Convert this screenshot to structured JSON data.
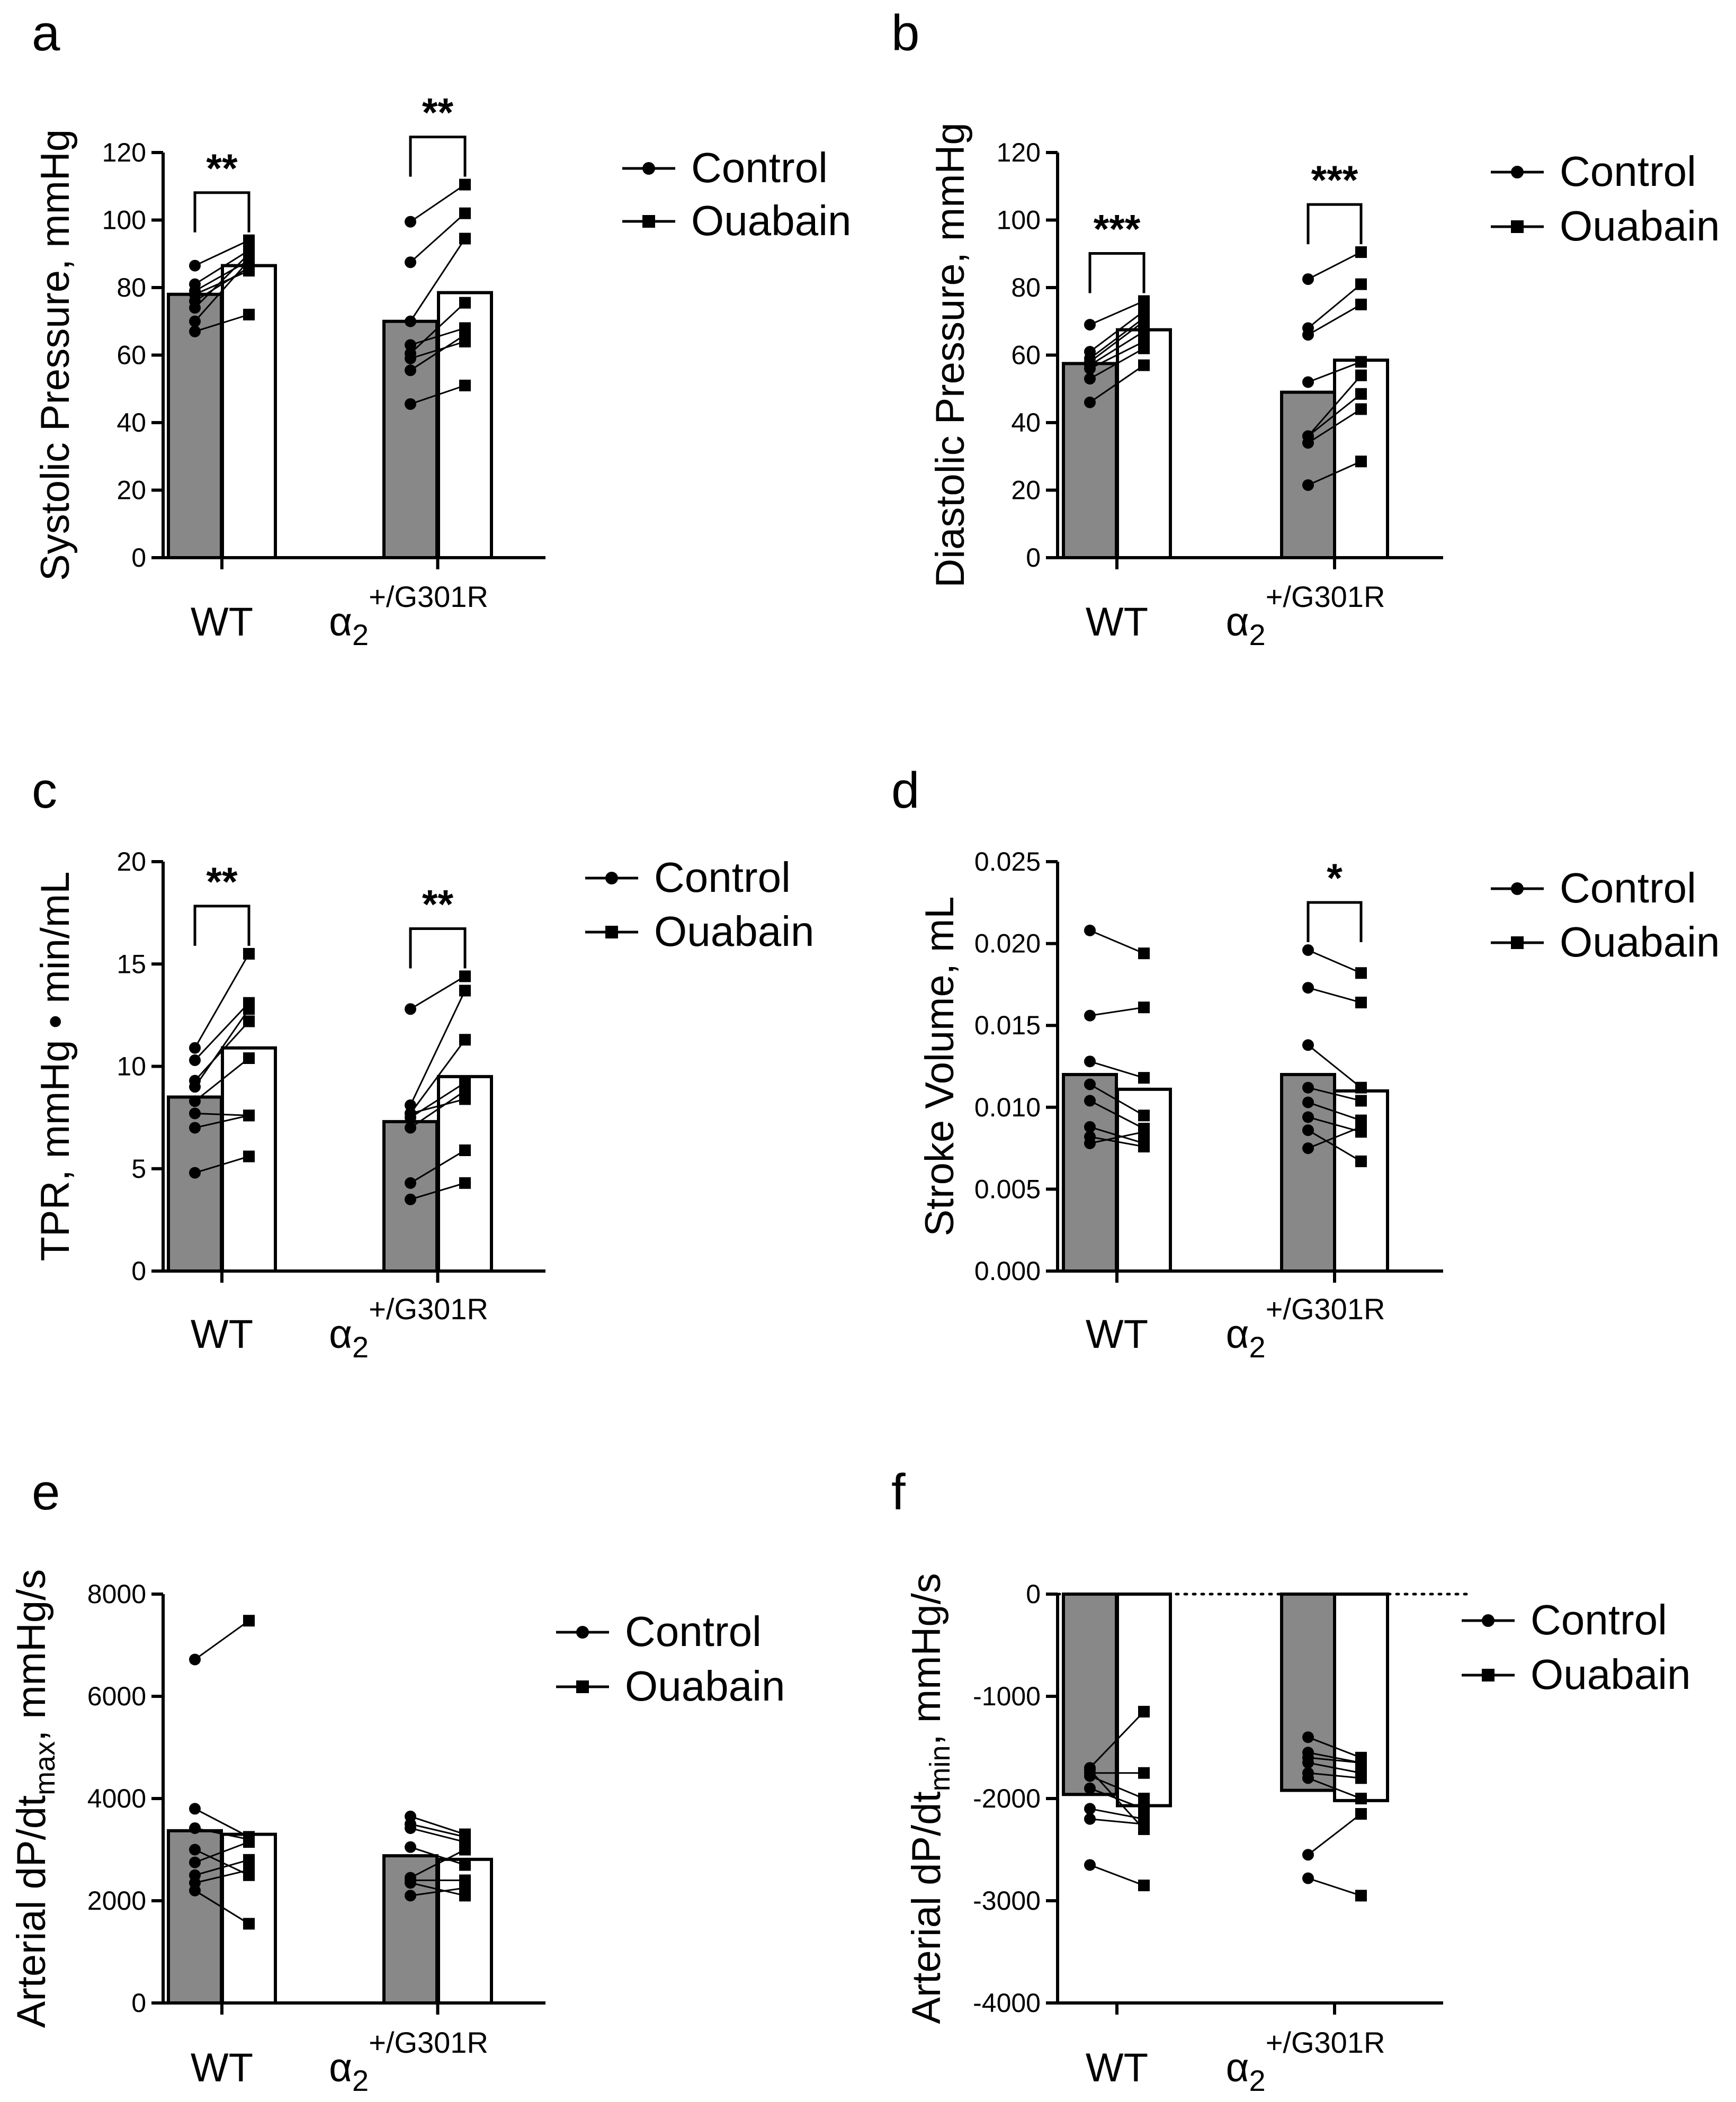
{
  "colors": {
    "control_bar": "#888888",
    "ouabain_bar": "#ffffff",
    "ink": "#000000"
  },
  "chart_data": [
    {
      "panel": "a",
      "type": "bar",
      "ylabel": "Systolic Pressure, mmHg",
      "ylim": [
        0,
        120
      ],
      "yticks": [
        "0",
        "20",
        "40",
        "60",
        "80",
        "100",
        "120"
      ],
      "ytick_values": [
        0,
        20,
        40,
        60,
        80,
        100,
        120
      ],
      "groups": [
        {
          "name": "WT",
          "superscript": "",
          "control_mean": 78,
          "ouabain_mean": 86.5,
          "pairs": [
            [
              86.5,
              94
            ],
            [
              81,
              91
            ],
            [
              79,
              88
            ],
            [
              78,
              85
            ],
            [
              76,
              86
            ],
            [
              74,
              90
            ],
            [
              70,
              88
            ],
            [
              67,
              72
            ]
          ],
          "sig": "**"
        },
        {
          "name": "α",
          "subscript": "2",
          "superscript": "+/G301R",
          "control_mean": 70,
          "ouabain_mean": 78.5,
          "pairs": [
            [
              99.5,
              110.5
            ],
            [
              87.5,
              102
            ],
            [
              70,
              94.5
            ],
            [
              60.5,
              75.5
            ],
            [
              55.5,
              66
            ],
            [
              45.5,
              51
            ],
            [
              59,
              64
            ],
            [
              63,
              68
            ]
          ],
          "sig": "**"
        }
      ],
      "legend": [
        "Control",
        "Ouabain"
      ]
    },
    {
      "panel": "b",
      "type": "bar",
      "ylabel": "Diastolic Pressure, mmHg",
      "ylim": [
        0,
        120
      ],
      "yticks": [
        "0",
        "20",
        "40",
        "60",
        "80",
        "100",
        "120"
      ],
      "ytick_values": [
        0,
        20,
        40,
        60,
        80,
        100,
        120
      ],
      "groups": [
        {
          "name": "WT",
          "superscript": "",
          "control_mean": 57.5,
          "ouabain_mean": 67.5,
          "pairs": [
            [
              69,
              76
            ],
            [
              61,
              73
            ],
            [
              58,
              70
            ],
            [
              57,
              67
            ],
            [
              56,
              64
            ],
            [
              53,
              62
            ],
            [
              46,
              57
            ],
            [
              59,
              71
            ]
          ],
          "sig": "***"
        },
        {
          "name": "α",
          "subscript": "2",
          "superscript": "+/G301R",
          "control_mean": 49,
          "ouabain_mean": 58.5,
          "pairs": [
            [
              82.5,
              90.5
            ],
            [
              68,
              81
            ],
            [
              66,
              75
            ],
            [
              52,
              58
            ],
            [
              36,
              48.5
            ],
            [
              34,
              44
            ],
            [
              21.5,
              28.5
            ],
            [
              36,
              54
            ]
          ],
          "sig": "***"
        }
      ],
      "legend": [
        "Control",
        "Ouabain"
      ]
    },
    {
      "panel": "c",
      "type": "bar",
      "ylabel": "TPR, mmHg • min/mL",
      "ylim": [
        0,
        20
      ],
      "yticks": [
        "0",
        "5",
        "10",
        "15",
        "20"
      ],
      "ytick_values": [
        0,
        5,
        10,
        15,
        20
      ],
      "groups": [
        {
          "name": "WT",
          "superscript": "",
          "control_mean": 8.5,
          "ouabain_mean": 10.9,
          "pairs": [
            [
              10.9,
              15.5
            ],
            [
              10.3,
              13.1
            ],
            [
              9.3,
              12.2
            ],
            [
              8.3,
              10.4
            ],
            [
              7.0,
              7.6
            ],
            [
              4.8,
              5.6
            ],
            [
              9.0,
              12.8
            ],
            [
              7.7,
              7.6
            ]
          ],
          "sig": "**"
        },
        {
          "name": "α",
          "subscript": "2",
          "superscript": "+/G301R",
          "control_mean": 7.3,
          "ouabain_mean": 9.5,
          "pairs": [
            [
              12.8,
              14.4
            ],
            [
              8.1,
              13.7
            ],
            [
              7.7,
              11.3
            ],
            [
              7.0,
              8.8
            ],
            [
              7.7,
              8.4
            ],
            [
              4.3,
              5.9
            ],
            [
              3.5,
              4.3
            ],
            [
              7.5,
              9.2
            ]
          ],
          "sig": "**"
        }
      ],
      "legend": [
        "Control",
        "Ouabain"
      ]
    },
    {
      "panel": "d",
      "type": "bar",
      "ylabel": "Stroke Volume, mL",
      "ylim": [
        0,
        0.025
      ],
      "yticks": [
        "0.000",
        "0.005",
        "0.010",
        "0.015",
        "0.020",
        "0.025"
      ],
      "ytick_values": [
        0,
        0.005,
        0.01,
        0.015,
        0.02,
        0.025
      ],
      "groups": [
        {
          "name": "WT",
          "superscript": "",
          "control_mean": 0.012,
          "ouabain_mean": 0.0111,
          "pairs": [
            [
              0.0208,
              0.0194
            ],
            [
              0.0156,
              0.0161
            ],
            [
              0.0128,
              0.0118
            ],
            [
              0.0114,
              0.0095
            ],
            [
              0.0104,
              0.0087
            ],
            [
              0.0088,
              0.0078
            ],
            [
              0.0082,
              0.0076
            ],
            [
              0.0078,
              0.0085
            ]
          ],
          "sig": ""
        },
        {
          "name": "α",
          "subscript": "2",
          "superscript": "+/G301R",
          "control_mean": 0.012,
          "ouabain_mean": 0.011,
          "pairs": [
            [
              0.0196,
              0.0182
            ],
            [
              0.0173,
              0.0164
            ],
            [
              0.0138,
              0.0112
            ],
            [
              0.0112,
              0.0104
            ],
            [
              0.0103,
              0.0092
            ],
            [
              0.0094,
              0.0085
            ],
            [
              0.0086,
              0.0067
            ],
            [
              0.0075,
              0.0088
            ]
          ],
          "sig": "*"
        }
      ],
      "legend": [
        "Control",
        "Ouabain"
      ]
    },
    {
      "panel": "e",
      "type": "bar",
      "ylabel": "Arterial dP/dt",
      "ylabel_sub": "max",
      "ylabel_suffix": ", mmHg/s",
      "ylim": [
        0,
        8000
      ],
      "yticks": [
        "0",
        "2000",
        "4000",
        "6000",
        "8000"
      ],
      "ytick_values": [
        0,
        2000,
        4000,
        6000,
        8000
      ],
      "groups": [
        {
          "name": "WT",
          "superscript": "",
          "control_mean": 3370,
          "ouabain_mean": 3300,
          "pairs": [
            [
              6720,
              7480
            ],
            [
              3800,
              3250
            ],
            [
              3420,
              3200
            ],
            [
              3000,
              2500
            ],
            [
              2750,
              3150
            ],
            [
              2500,
              2800
            ],
            [
              2350,
              2600
            ],
            [
              2200,
              1550
            ]
          ],
          "sig": ""
        },
        {
          "name": "α",
          "subscript": "2",
          "superscript": "+/G301R",
          "control_mean": 2880,
          "ouabain_mean": 2810,
          "pairs": [
            [
              3650,
              3300
            ],
            [
              3500,
              3250
            ],
            [
              3420,
              3150
            ],
            [
              3050,
              2700
            ],
            [
              2450,
              3000
            ],
            [
              2400,
              2400
            ],
            [
              2100,
              2250
            ],
            [
              2350,
              2100
            ]
          ],
          "sig": ""
        }
      ],
      "legend": [
        "Control",
        "Ouabain"
      ]
    },
    {
      "panel": "f",
      "type": "bar",
      "ylabel": "Arterial dP/dt",
      "ylabel_sub": "min",
      "ylabel_suffix": ", mmHg/s",
      "ylim": [
        -4000,
        0
      ],
      "yticks": [
        "-4000",
        "-3000",
        "-2000",
        "-1000",
        "0"
      ],
      "ytick_values": [
        -4000,
        -3000,
        -2000,
        -1000,
        0
      ],
      "zero_line": "dotted",
      "groups": [
        {
          "name": "WT",
          "superscript": "",
          "control_mean": -1960,
          "ouabain_mean": -2070,
          "pairs": [
            [
              -1700,
              -1150
            ],
            [
              -1750,
              -1750
            ],
            [
              -1780,
              -2000
            ],
            [
              -1900,
              -2100
            ],
            [
              -2100,
              -2200
            ],
            [
              -2200,
              -2250
            ],
            [
              -2650,
              -2850
            ],
            [
              -1720,
              -2300
            ]
          ],
          "sig": ""
        },
        {
          "name": "α",
          "subscript": "2",
          "superscript": "+/G301R",
          "control_mean": -1920,
          "ouabain_mean": -2020,
          "pairs": [
            [
              -1400,
              -1600
            ],
            [
              -1550,
              -1650
            ],
            [
              -1650,
              -1750
            ],
            [
              -1750,
              -1800
            ],
            [
              -1800,
              -2000
            ],
            [
              -2550,
              -2150
            ],
            [
              -2780,
              -2950
            ],
            [
              -1600,
              -1650
            ]
          ],
          "sig": ""
        }
      ],
      "legend": [
        "Control",
        "Ouabain"
      ]
    }
  ]
}
